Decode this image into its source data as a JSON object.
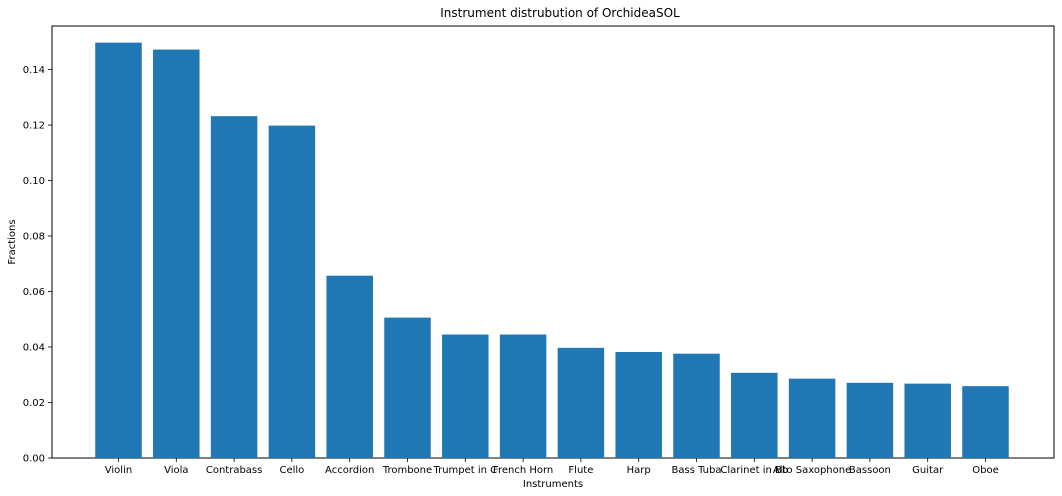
{
  "chart_data": {
    "type": "bar",
    "title": "Instrument distrubution of OrchideaSOL",
    "xlabel": "Instruments",
    "ylabel": "Fractions",
    "categories": [
      "Violin",
      "Viola",
      "Contrabass",
      "Cello",
      "Accordion",
      "Trombone",
      "Trumpet in C",
      "French Horn",
      "Flute",
      "Harp",
      "Bass Tuba",
      "Clarinet in Bb",
      "Alto Saxophone",
      "Bassoon",
      "Guitar",
      "Oboe"
    ],
    "values": [
      0.1497,
      0.1472,
      0.1232,
      0.1198,
      0.0657,
      0.0506,
      0.0445,
      0.0445,
      0.0397,
      0.0382,
      0.0376,
      0.0307,
      0.0286,
      0.0271,
      0.0268,
      0.0259
    ],
    "ylim": [
      0,
      0.1557
    ],
    "yticks": [
      0.0,
      0.02,
      0.04,
      0.06,
      0.08,
      0.1,
      0.12,
      0.14
    ],
    "ytick_labels": [
      "0.00",
      "0.02",
      "0.04",
      "0.06",
      "0.08",
      "0.10",
      "0.12",
      "0.14"
    ],
    "bar_color": "#1f77b4",
    "grid": false,
    "legend": "none"
  }
}
